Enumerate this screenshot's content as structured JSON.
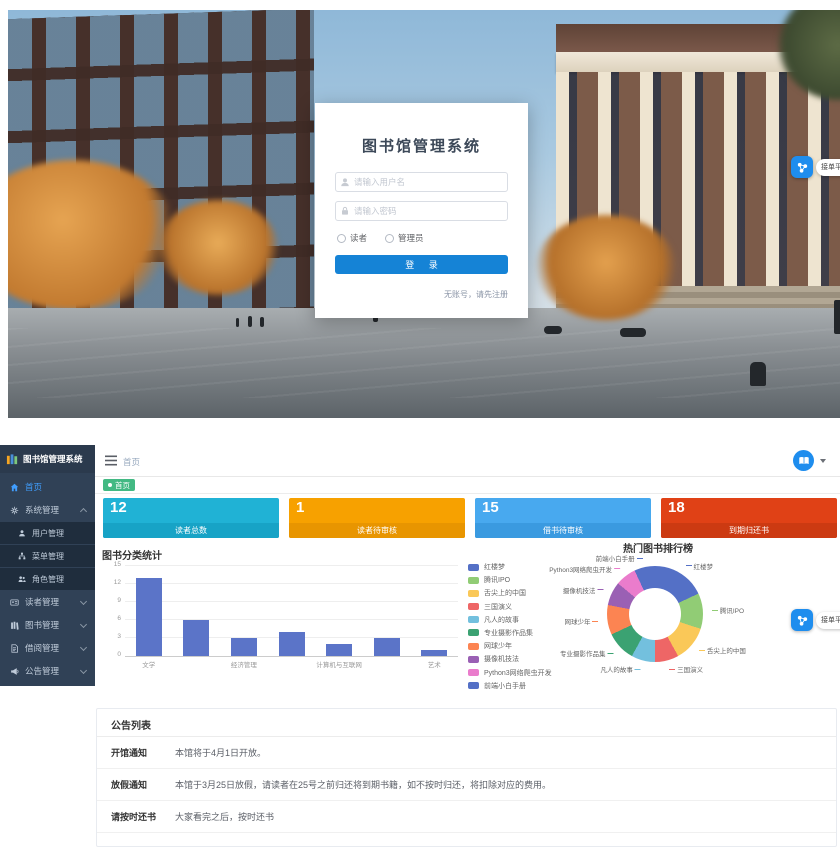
{
  "login": {
    "title": "图书馆管理系统",
    "username_placeholder": "请输入用户名",
    "password_placeholder": "请输入密码",
    "role_reader": "读者",
    "role_admin": "管理员",
    "login_button": "登 录",
    "register_link": "无账号，请先注册"
  },
  "float_badge": {
    "label": "接单平台:"
  },
  "dashboard": {
    "sidebar": {
      "logo": "图书馆管理系统",
      "home": "首页",
      "system": "系统管理",
      "system_children": {
        "users": "用户管理",
        "menus": "菜单管理",
        "roles": "角色管理"
      },
      "readers": "读者管理",
      "books": "图书管理",
      "borrow": "借阅管理",
      "notices": "公告管理"
    },
    "header": {
      "breadcrumb": "首页"
    },
    "tab": "首页",
    "stats": [
      {
        "value": "12",
        "label": "读者总数",
        "color": "#20b2d5",
        "band": "#17a3c6"
      },
      {
        "value": "1",
        "label": "读者待审核",
        "color": "#f7a100",
        "band": "#e89500"
      },
      {
        "value": "15",
        "label": "借书待审核",
        "color": "#48a9ef",
        "band": "#3a9ae0"
      },
      {
        "value": "18",
        "label": "到期归还书",
        "color": "#e04116",
        "band": "#cc3a12"
      }
    ],
    "announcements": {
      "title": "公告列表",
      "items": [
        {
          "label": "开馆通知",
          "content": "本馆将于4月1日开放。"
        },
        {
          "label": "放假通知",
          "content": "本馆于3月25日放假，请读者在25号之前归还将到期书籍，如不按时归还，将扣除对应的费用。"
        },
        {
          "label": "请按时还书",
          "content": "大家看完之后，按时还书"
        }
      ]
    }
  },
  "chart_data": [
    {
      "type": "bar",
      "title": "图书分类统计",
      "categories": [
        "文学",
        "",
        "经济管理",
        "",
        "计算机与互联网",
        "",
        "艺术"
      ],
      "values": [
        13,
        6,
        3,
        4,
        2,
        3,
        1
      ],
      "yticks": [
        0,
        3,
        6,
        9,
        12,
        15
      ],
      "ylim": [
        0,
        15
      ],
      "color": "#5b74c8",
      "xlabel": "",
      "ylabel": ""
    },
    {
      "type": "pie",
      "title": "热门图书排行榜",
      "legend_position": "left",
      "series": [
        {
          "name": "红楼梦",
          "value": 18,
          "color": "#5470c6"
        },
        {
          "name": "腾讯IPO",
          "value": 12,
          "color": "#91cc75"
        },
        {
          "name": "舌尖上的中国",
          "value": 12,
          "color": "#fac858"
        },
        {
          "name": "三国演义",
          "value": 8,
          "color": "#ee6666"
        },
        {
          "name": "凡人的故事",
          "value": 8,
          "color": "#73c0de"
        },
        {
          "name": "专业摄影作品集",
          "value": 10,
          "color": "#3ba272"
        },
        {
          "name": "网球少年",
          "value": 10,
          "color": "#fc8452"
        },
        {
          "name": "摄像机技法",
          "value": 8,
          "color": "#9a60b4"
        },
        {
          "name": "Python3网络爬虫开发",
          "value": 7,
          "color": "#ea7ccc"
        },
        {
          "name": "前端小白手册",
          "value": 7,
          "color": "#5470c6"
        }
      ]
    }
  ]
}
